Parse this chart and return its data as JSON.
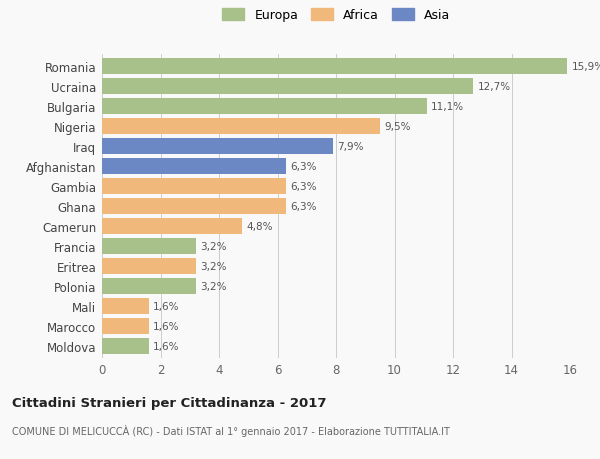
{
  "countries": [
    "Romania",
    "Ucraina",
    "Bulgaria",
    "Nigeria",
    "Iraq",
    "Afghanistan",
    "Gambia",
    "Ghana",
    "Camerun",
    "Francia",
    "Eritrea",
    "Polonia",
    "Mali",
    "Marocco",
    "Moldova"
  ],
  "values": [
    15.9,
    12.7,
    11.1,
    9.5,
    7.9,
    6.3,
    6.3,
    6.3,
    4.8,
    3.2,
    3.2,
    3.2,
    1.6,
    1.6,
    1.6
  ],
  "labels": [
    "15,9%",
    "12,7%",
    "11,1%",
    "9,5%",
    "7,9%",
    "6,3%",
    "6,3%",
    "6,3%",
    "4,8%",
    "3,2%",
    "3,2%",
    "3,2%",
    "1,6%",
    "1,6%",
    "1,6%"
  ],
  "continents": [
    "Europa",
    "Europa",
    "Europa",
    "Africa",
    "Asia",
    "Asia",
    "Africa",
    "Africa",
    "Africa",
    "Europa",
    "Africa",
    "Europa",
    "Africa",
    "Africa",
    "Europa"
  ],
  "colors": {
    "Europa": "#a8c08a",
    "Africa": "#f0b87a",
    "Asia": "#6b88c4"
  },
  "xlim": [
    0,
    16
  ],
  "xticks": [
    0,
    2,
    4,
    6,
    8,
    10,
    12,
    14,
    16
  ],
  "title": "Cittadini Stranieri per Cittadinanza - 2017",
  "subtitle": "COMUNE DI MELICUCCÀ (RC) - Dati ISTAT al 1° gennaio 2017 - Elaborazione TUTTITALIA.IT",
  "background_color": "#f9f9f9",
  "bar_height": 0.82,
  "grid_color": "#cccccc"
}
